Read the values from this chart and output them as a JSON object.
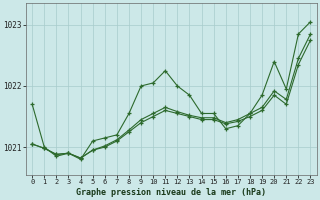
{
  "title": "Graphe pression niveau de la mer (hPa)",
  "bg_color": "#cce8e8",
  "grid_color": "#a8cccc",
  "line_color": "#2d6a2d",
  "xlim": [
    -0.5,
    23.5
  ],
  "ylim": [
    1020.55,
    1023.35
  ],
  "yticks": [
    1021,
    1022,
    1023
  ],
  "xtick_labels": [
    "0",
    "1",
    "2",
    "3",
    "4",
    "5",
    "6",
    "7",
    "8",
    "9",
    "10",
    "11",
    "12",
    "13",
    "14",
    "15",
    "16",
    "17",
    "18",
    "19",
    "20",
    "21",
    "22",
    "23"
  ],
  "line1_x": [
    0,
    1,
    2,
    3,
    4,
    5,
    6,
    7,
    8,
    9,
    10,
    11,
    12,
    13,
    14,
    15,
    16,
    17,
    18,
    19,
    20,
    21,
    22,
    23
  ],
  "line1_y": [
    1021.7,
    1021.0,
    1020.85,
    1020.9,
    1020.8,
    1021.1,
    1021.15,
    1021.2,
    1021.55,
    1022.0,
    1022.05,
    1022.25,
    1022.0,
    1021.85,
    1021.55,
    1021.55,
    1021.3,
    1021.35,
    1021.55,
    1021.85,
    1022.4,
    1021.95,
    1022.85,
    1023.05
  ],
  "line2_x": [
    0,
    1,
    2,
    3,
    4,
    5,
    6,
    7,
    8,
    9,
    10,
    11,
    12,
    13,
    14,
    15,
    16,
    17,
    18,
    19,
    20,
    21,
    22,
    23
  ],
  "line2_y": [
    1021.05,
    1020.98,
    1020.88,
    1020.9,
    1020.82,
    1020.95,
    1021.0,
    1021.1,
    1021.25,
    1021.4,
    1021.5,
    1021.6,
    1021.55,
    1021.5,
    1021.45,
    1021.45,
    1021.38,
    1021.42,
    1021.5,
    1021.6,
    1021.85,
    1021.7,
    1022.35,
    1022.75
  ],
  "line3_x": [
    0,
    1,
    2,
    3,
    4,
    5,
    6,
    7,
    8,
    9,
    10,
    11,
    12,
    13,
    14,
    15,
    16,
    17,
    18,
    19,
    20,
    21,
    22,
    23
  ],
  "line3_y": [
    1021.05,
    1020.98,
    1020.88,
    1020.9,
    1020.82,
    1020.95,
    1021.02,
    1021.12,
    1021.28,
    1021.45,
    1021.55,
    1021.65,
    1021.58,
    1021.52,
    1021.48,
    1021.48,
    1021.4,
    1021.45,
    1021.55,
    1021.65,
    1021.92,
    1021.78,
    1022.45,
    1022.85
  ]
}
